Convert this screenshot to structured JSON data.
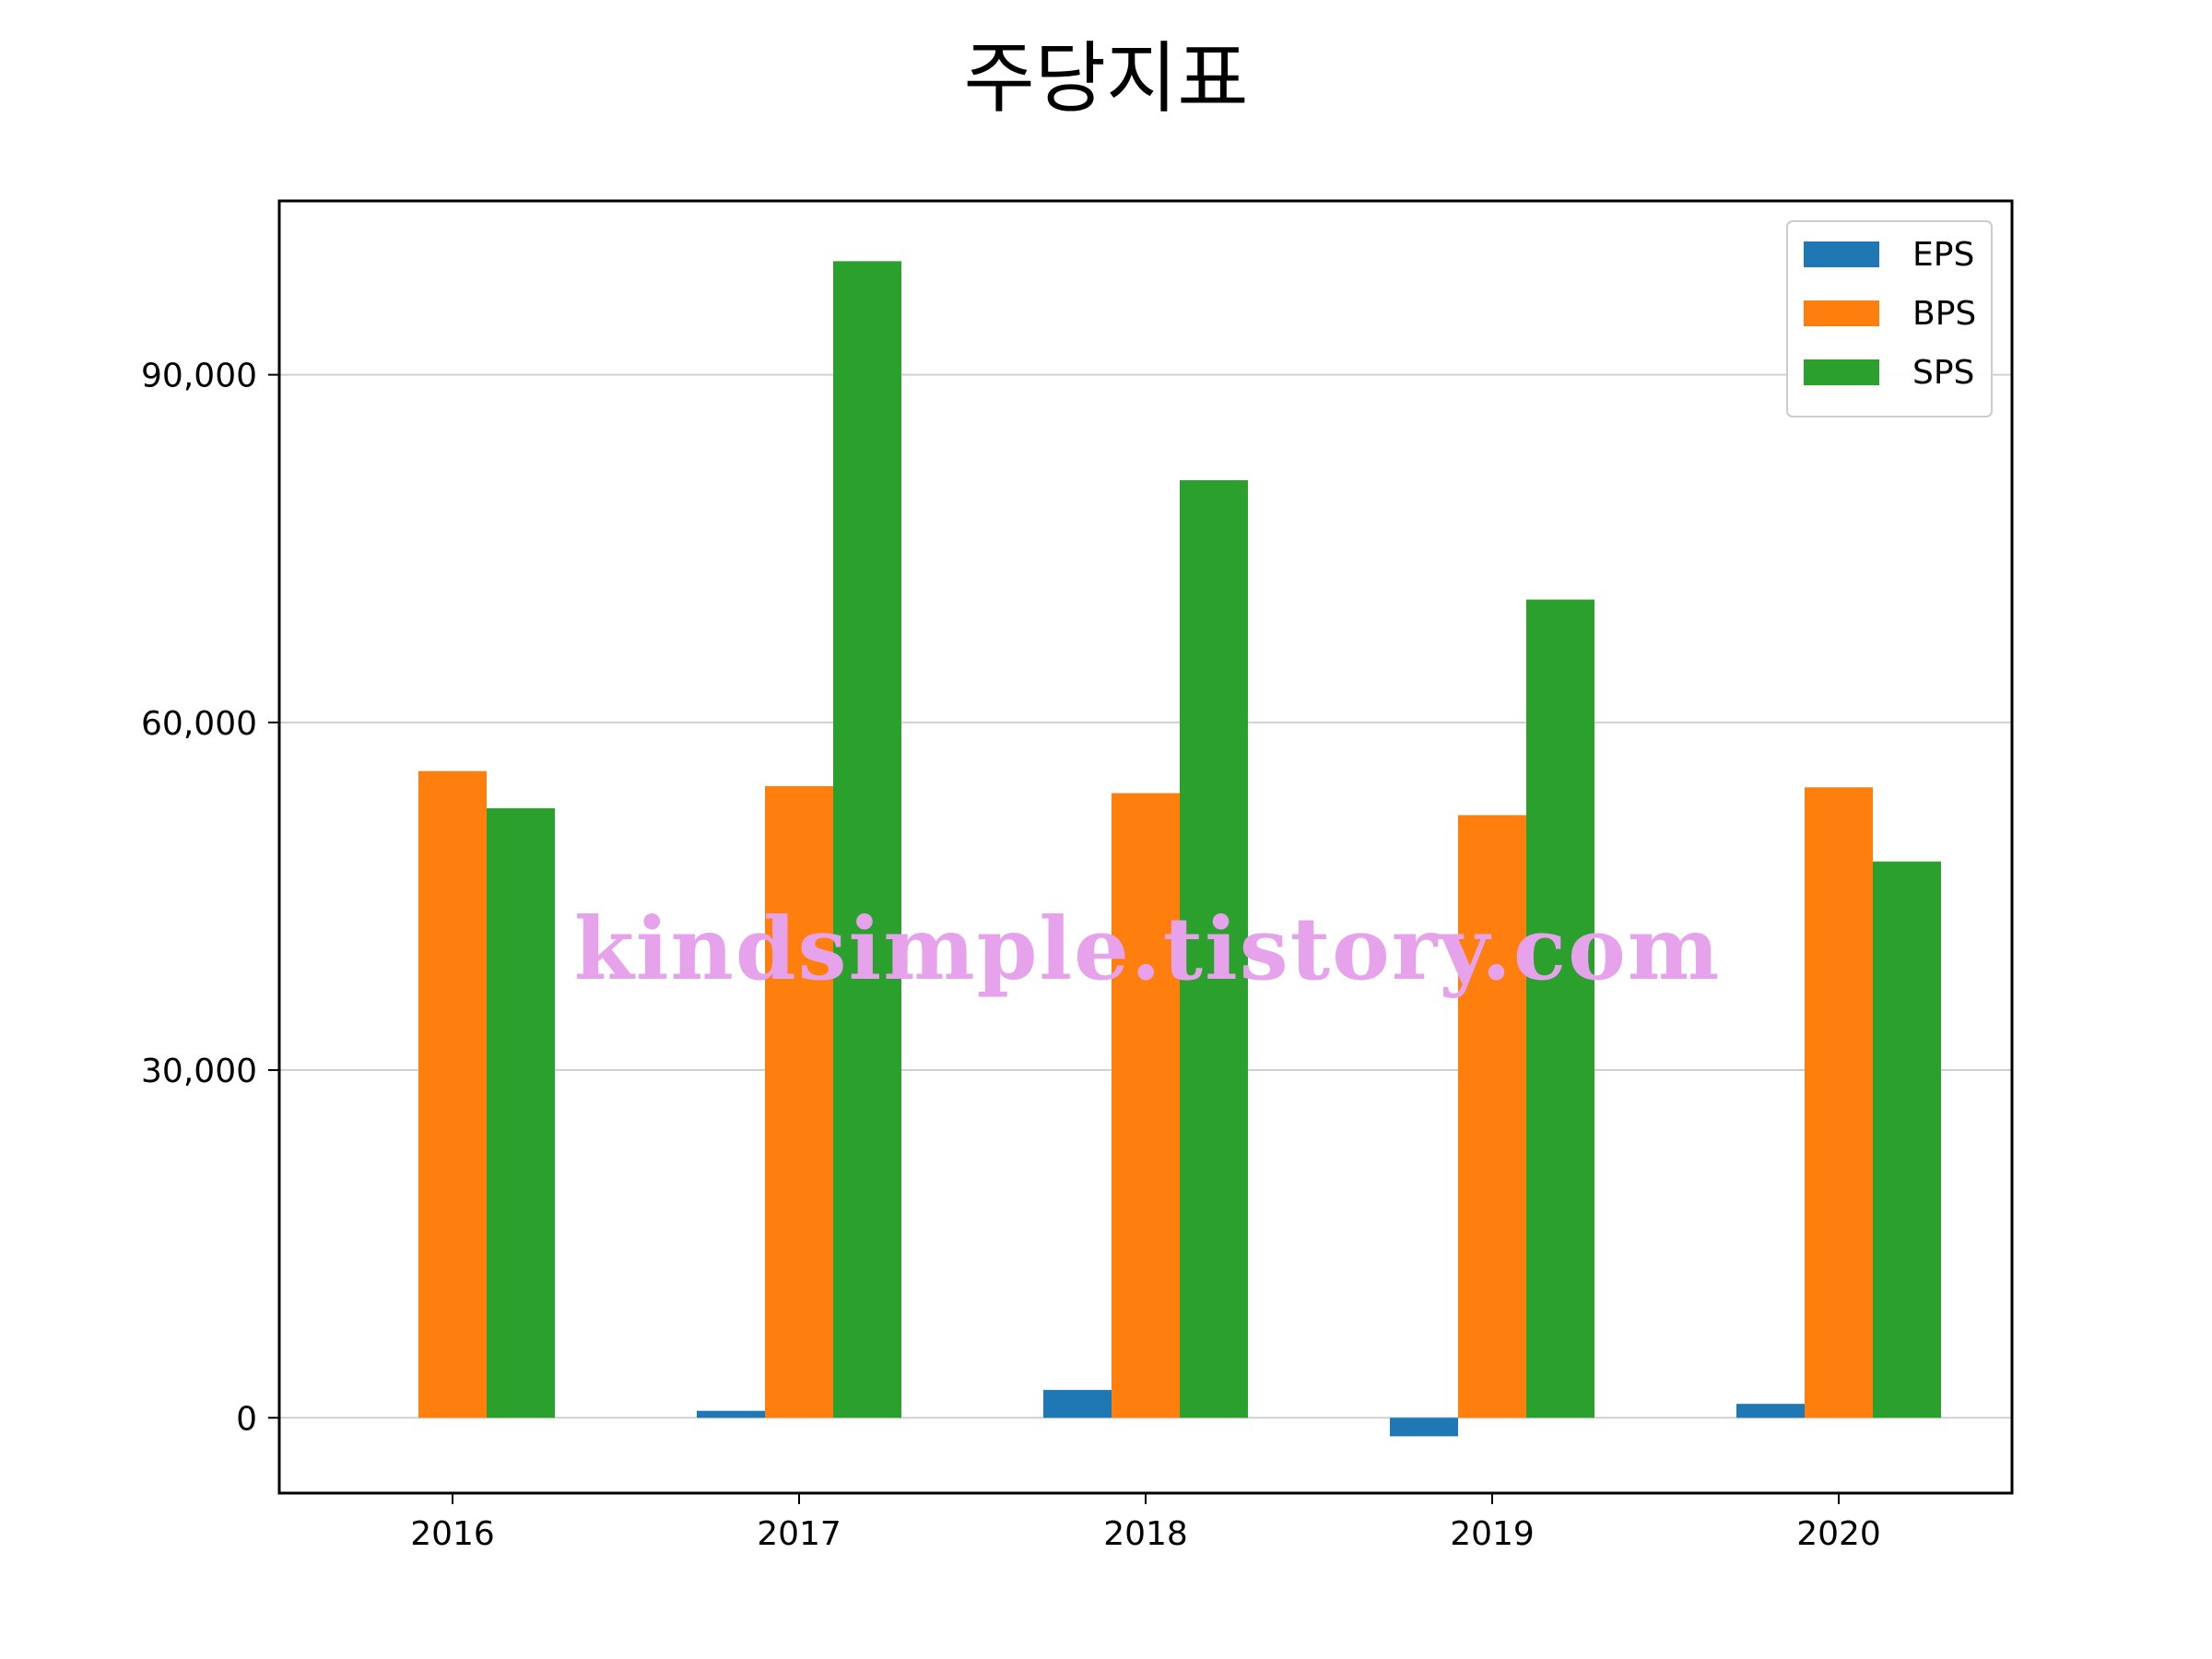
{
  "chart_data": {
    "type": "bar",
    "title": "주당지표",
    "xlabel": "",
    "ylabel": "",
    "categories": [
      "2016",
      "2017",
      "2018",
      "2019",
      "2020"
    ],
    "series": [
      {
        "name": "EPS",
        "color": "#1f77b4",
        "values": [
          0,
          600,
          2400,
          -1600,
          1200
        ]
      },
      {
        "name": "BPS",
        "color": "#ff7f0e",
        "values": [
          55800,
          54500,
          53900,
          52000,
          54400
        ]
      },
      {
        "name": "SPS",
        "color": "#2ca02c",
        "values": [
          52600,
          99800,
          80900,
          70600,
          48000
        ]
      }
    ],
    "ylim": [
      -6500,
      105000
    ],
    "yticks": [
      0,
      30000,
      60000,
      90000
    ],
    "ytick_labels": [
      "0",
      "30,000",
      "60,000",
      "90,000"
    ],
    "grid": "y",
    "legend_position": "top-right"
  },
  "watermark": "kindsimple.tistory.com"
}
